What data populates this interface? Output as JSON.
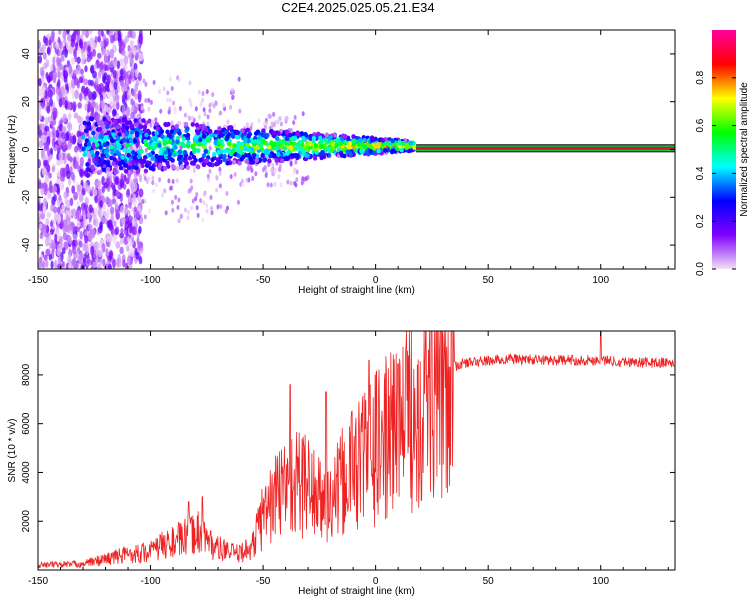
{
  "title": "C2E4.2025.025.05.21.E34",
  "colors": {
    "snr_line": "#ee2222",
    "axis": "#000000",
    "ridge_core": "#dd1030",
    "ridge_edge": "#00cc44"
  },
  "chart_data": [
    {
      "type": "heatmap",
      "xlabel": "Height of straight line (km)",
      "ylabel": "Frequency (Hz)",
      "xlim": [
        -150,
        133
      ],
      "ylim": [
        -50,
        50
      ],
      "xticks": [
        -150,
        -100,
        -50,
        0,
        50,
        100
      ],
      "yticks": [
        -40,
        -20,
        0,
        20,
        40
      ],
      "colorbar": {
        "label": "Normalized spectral amplitude",
        "range": [
          0,
          1
        ],
        "ticks": [
          "0.0",
          "0.2",
          "0.4",
          "0.6",
          "0.8"
        ],
        "colormap": [
          "#f4e0f4",
          "#8000ff",
          "#0000ff",
          "#00ffff",
          "#00ff00",
          "#ffff00",
          "#ff0000",
          "#ff00a0"
        ]
      },
      "features": {
        "noise_region_x": [
          -150,
          -110
        ],
        "scatter_region_x": [
          -110,
          -30
        ],
        "ridge_start_x": -130,
        "ridge_end_x": 18,
        "steady_tone_start_x": 18,
        "steady_tone_freq_hz": 0.5
      }
    },
    {
      "type": "line",
      "xlabel": "Height of straight line (km)",
      "ylabel": "SNR (10 * v/v)",
      "xlim": [
        -150,
        133
      ],
      "ylim": [
        0,
        9800
      ],
      "xticks": [
        -150,
        -100,
        -50,
        0,
        50,
        100
      ],
      "yticks": [
        2000,
        4000,
        6000,
        8000
      ],
      "series": [
        {
          "envelope": [
            [
              -150,
              200
            ],
            [
              -130,
              250
            ],
            [
              -120,
              450
            ],
            [
              -110,
              650
            ],
            [
              -100,
              750
            ],
            [
              -95,
              1000
            ],
            [
              -85,
              1300
            ],
            [
              -78,
              1600
            ],
            [
              -72,
              950
            ],
            [
              -62,
              650
            ],
            [
              -55,
              900
            ],
            [
              -50,
              2300
            ],
            [
              -40,
              3500
            ],
            [
              -30,
              3600
            ],
            [
              -25,
              2800
            ],
            [
              -20,
              2700
            ],
            [
              -10,
              4300
            ],
            [
              0,
              5000
            ],
            [
              10,
              5800
            ],
            [
              20,
              7000
            ],
            [
              30,
              8200
            ],
            [
              40,
              8500
            ],
            [
              60,
              8650
            ],
            [
              80,
              8600
            ],
            [
              100,
              8600
            ],
            [
              120,
              8500
            ],
            [
              133,
              8500
            ]
          ],
          "spikes": [
            [
              -83,
              2800
            ],
            [
              -77,
              3000
            ],
            [
              -38,
              7600
            ],
            [
              -22,
              7300
            ],
            [
              -3,
              8600
            ],
            [
              10,
              8450
            ],
            [
              100,
              9800
            ]
          ]
        }
      ]
    }
  ]
}
